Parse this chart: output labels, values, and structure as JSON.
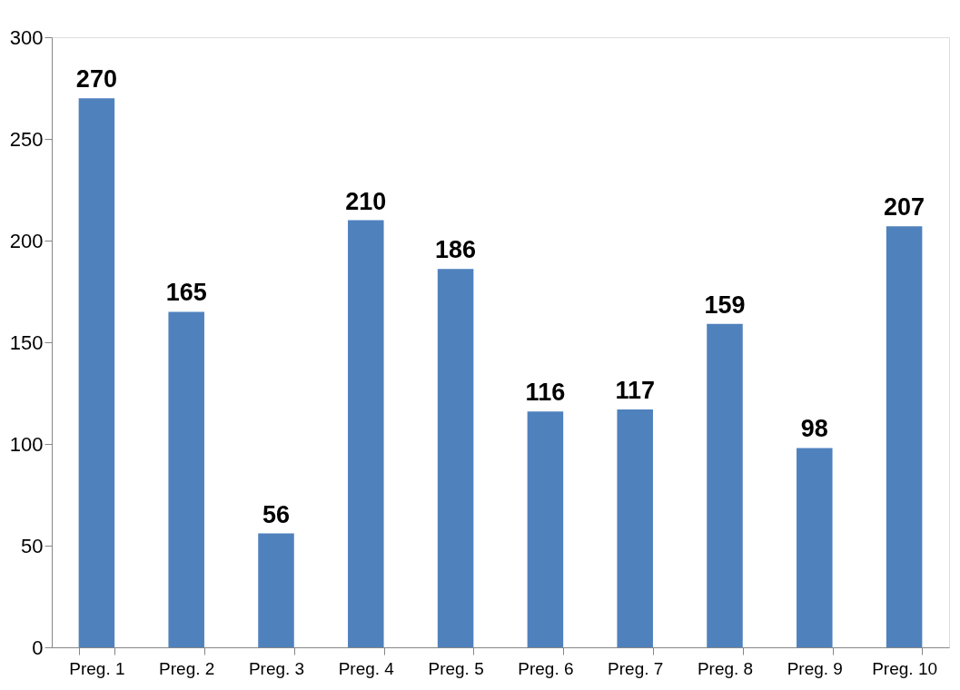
{
  "chart_data": {
    "type": "bar",
    "categories": [
      "Preg. 1",
      "Preg. 2",
      "Preg. 3",
      "Preg. 4",
      "Preg. 5",
      "Preg. 6",
      "Preg. 7",
      "Preg. 8",
      "Preg. 9",
      "Preg. 10"
    ],
    "values": [
      270,
      165,
      56,
      210,
      186,
      116,
      117,
      159,
      98,
      207
    ],
    "color": "#4f81bd",
    "ylim": [
      0,
      300
    ],
    "yticks": [
      0,
      50,
      100,
      150,
      200,
      250,
      300
    ],
    "grid": false,
    "data_labels": true
  }
}
